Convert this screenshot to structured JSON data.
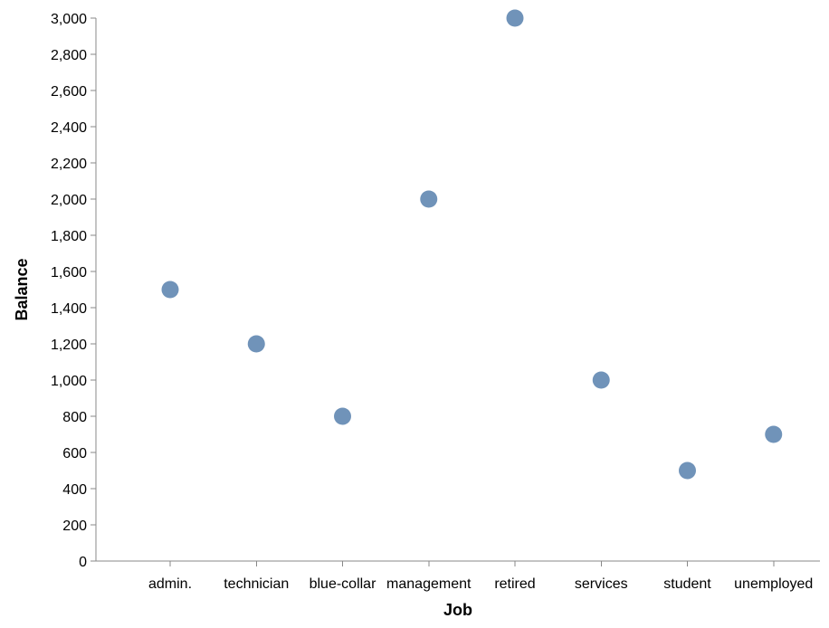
{
  "chart_data": {
    "type": "scatter",
    "title": "",
    "xlabel": "Job",
    "ylabel": "Balance",
    "categories": [
      "admin.",
      "technician",
      "blue-collar",
      "management",
      "retired",
      "services",
      "student",
      "unemployed"
    ],
    "values": [
      1500,
      1200,
      800,
      2000,
      3000,
      1000,
      500,
      700
    ],
    "ylim": [
      0,
      3000
    ],
    "y_ticks": [
      0,
      200,
      400,
      600,
      800,
      1000,
      1200,
      1400,
      1600,
      1800,
      2000,
      2200,
      2400,
      2600,
      2800,
      3000
    ],
    "y_tick_labels": [
      "0",
      "200",
      "400",
      "600",
      "800",
      "1,000",
      "1,200",
      "1,400",
      "1,600",
      "1,800",
      "2,000",
      "2,200",
      "2,400",
      "2,600",
      "2,800",
      "3,000"
    ],
    "grid": false,
    "legend": "none",
    "point_color": "#4c78a8"
  }
}
